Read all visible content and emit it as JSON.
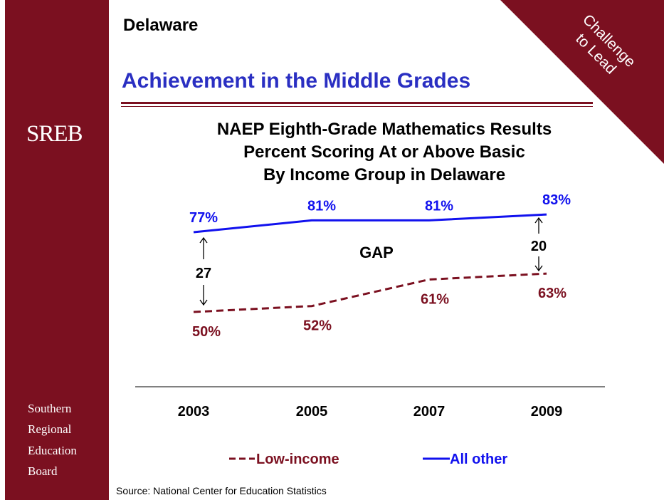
{
  "header": {
    "state": "Delaware",
    "section_title": "Achievement in the Middle Grades",
    "corner_line1": "Challenge",
    "corner_line2": "to Lead"
  },
  "sidebar": {
    "logo": "SREB",
    "org_lines": [
      "Southern",
      "Regional",
      "Education",
      "Board"
    ]
  },
  "chart_data": {
    "type": "line",
    "title_lines": [
      "NAEP Eighth-Grade Mathematics Results",
      "Percent Scoring At or Above Basic",
      "By Income Group in Delaware"
    ],
    "categories": [
      "2003",
      "2005",
      "2007",
      "2009"
    ],
    "series": [
      {
        "name": "All other",
        "values": [
          77,
          81,
          81,
          83
        ],
        "labels": [
          "77%",
          "81%",
          "81%",
          "83%"
        ],
        "color": "#1111ee",
        "style": "solid"
      },
      {
        "name": "Low-income",
        "values": [
          50,
          52,
          61,
          63
        ],
        "labels": [
          "50%",
          "52%",
          "61%",
          "63%"
        ],
        "color": "#7b1020",
        "style": "dashed"
      }
    ],
    "gap_label": "GAP",
    "gaps": [
      {
        "category": "2003",
        "value": "27"
      },
      {
        "category": "2009",
        "value": "20"
      }
    ],
    "legend": [
      {
        "label": "Low-income",
        "color": "#7b1020",
        "style": "dashed"
      },
      {
        "label": "All other",
        "color": "#1111ee",
        "style": "solid"
      }
    ],
    "legend_position": "bottom",
    "grid": false
  },
  "source": "Source: National Center for Education Statistics",
  "colors": {
    "brand": "#7b1020",
    "accent_blue": "#1111ee",
    "title_blue": "#2a2fc2"
  }
}
